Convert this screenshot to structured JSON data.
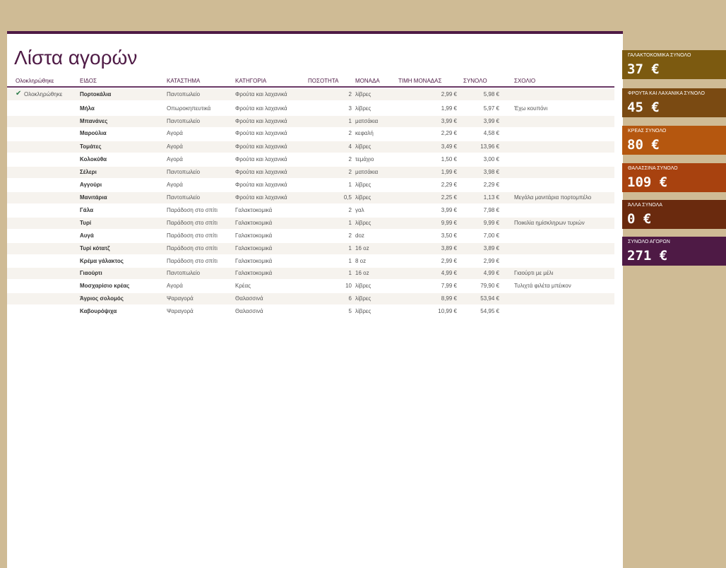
{
  "title": "Λίστα αγορών",
  "headers": [
    "Ολοκληρώθηκε",
    "ΕΙΔΟΣ",
    "ΚΑΤΑΣΤΗΜΑ",
    "ΚΑΤΗΓΟΡΙΑ",
    "ΠΟΣΟΤΗΤΑ",
    "ΜΟΝΑΔΑ",
    "ΤΙΜΗ ΜΟΝΑΔΑΣ",
    "ΣΥΝΟΛΟ",
    "ΣΧΟΛΙΟ"
  ],
  "rows": [
    {
      "done": "Ολοκληρώθηκε",
      "item": "Πορτοκάλια",
      "store": "Παντοπωλείο",
      "cat": "Φρούτα και λαχανικά",
      "qty": "2",
      "unit": "λίβρες",
      "price": "2,99 €",
      "total": "5,98 €",
      "note": ""
    },
    {
      "done": "",
      "item": "Μήλα",
      "store": "Οπωροκηπευτικά",
      "cat": "Φρούτα και λαχανικά",
      "qty": "3",
      "unit": "λίβρες",
      "price": "1,99 €",
      "total": "5,97 €",
      "note": "Έχω κουπόνι"
    },
    {
      "done": "",
      "item": "Μπανάνες",
      "store": "Παντοπωλείο",
      "cat": "Φρούτα και λαχανικά",
      "qty": "1",
      "unit": "ματσάκια",
      "price": "3,99 €",
      "total": "3,99 €",
      "note": ""
    },
    {
      "done": "",
      "item": "Μαρούλια",
      "store": "Αγορά",
      "cat": "Φρούτα και λαχανικά",
      "qty": "2",
      "unit": "κεφαλή",
      "price": "2,29 €",
      "total": "4,58 €",
      "note": ""
    },
    {
      "done": "",
      "item": "Τομάτες",
      "store": "Αγορά",
      "cat": "Φρούτα και λαχανικά",
      "qty": "4",
      "unit": "λίβρες",
      "price": "3,49 €",
      "total": "13,96 €",
      "note": ""
    },
    {
      "done": "",
      "item": "Κολοκύθα",
      "store": "Αγορά",
      "cat": "Φρούτα και λαχανικά",
      "qty": "2",
      "unit": "τεμάχιο",
      "price": "1,50 €",
      "total": "3,00 €",
      "note": ""
    },
    {
      "done": "",
      "item": "Σέλερι",
      "store": "Παντοπωλείο",
      "cat": "Φρούτα και λαχανικά",
      "qty": "2",
      "unit": "ματσάκια",
      "price": "1,99 €",
      "total": "3,98 €",
      "note": ""
    },
    {
      "done": "",
      "item": "Αγγούρι",
      "store": "Αγορά",
      "cat": "Φρούτα και λαχανικά",
      "qty": "1",
      "unit": "λίβρες",
      "price": "2,29 €",
      "total": "2,29 €",
      "note": ""
    },
    {
      "done": "",
      "item": "Μανιτάρια",
      "store": "Παντοπωλείο",
      "cat": "Φρούτα και λαχανικά",
      "qty": "0,5",
      "unit": "λίβρες",
      "price": "2,25 €",
      "total": "1,13 €",
      "note": "Μεγάλα μανιτάρια πορτομπέλο"
    },
    {
      "done": "",
      "item": "Γάλα",
      "store": "Παράδοση στο σπίτι",
      "cat": "Γαλακτοκομικά",
      "qty": "2",
      "unit": "γαλ",
      "price": "3,99 €",
      "total": "7,98 €",
      "note": ""
    },
    {
      "done": "",
      "item": "Τυρί",
      "store": "Παράδοση στο σπίτι",
      "cat": "Γαλακτοκομικά",
      "qty": "1",
      "unit": "λίβρες",
      "price": "9,99 €",
      "total": "9,99 €",
      "note": "Ποικιλία ημίσκληρων τυριών"
    },
    {
      "done": "",
      "item": "Αυγά",
      "store": "Παράδοση στο σπίτι",
      "cat": "Γαλακτοκομικά",
      "qty": "2",
      "unit": "doz",
      "price": "3,50 €",
      "total": "7,00 €",
      "note": ""
    },
    {
      "done": "",
      "item": "Τυρί κότατζ",
      "store": "Παράδοση στο σπίτι",
      "cat": "Γαλακτοκομικά",
      "qty": "1",
      "unit": "16 oz",
      "price": "3,89 €",
      "total": "3,89 €",
      "note": ""
    },
    {
      "done": "",
      "item": "Κρέμα γάλακτος",
      "store": "Παράδοση στο σπίτι",
      "cat": "Γαλακτοκομικά",
      "qty": "1",
      "unit": "8 oz",
      "price": "2,99 €",
      "total": "2,99 €",
      "note": ""
    },
    {
      "done": "",
      "item": "Γιαούρτι",
      "store": "Παντοπωλείο",
      "cat": "Γαλακτοκομικά",
      "qty": "1",
      "unit": "16 oz",
      "price": "4,99 €",
      "total": "4,99 €",
      "note": "Γιαούρτι με μέλι"
    },
    {
      "done": "",
      "item": "Μοσχαρίσιο κρέας",
      "store": "Αγορά",
      "cat": "Κρέας",
      "qty": "10",
      "unit": "λίβρες",
      "price": "7,99 €",
      "total": "79,90 €",
      "note": "Τυλιχτά φιλέτα μπέικον"
    },
    {
      "done": "",
      "item": "Άγριος σολομός",
      "store": "Ψαραγορά",
      "cat": "Θαλασσινά",
      "qty": "6",
      "unit": "λίβρες",
      "price": "8,99 €",
      "total": "53,94 €",
      "note": ""
    },
    {
      "done": "",
      "item": "Καβουρόψιχα",
      "store": "Ψαραγορά",
      "cat": "Θαλασσινά",
      "qty": "5",
      "unit": "λίβρες",
      "price": "10,99 €",
      "total": "54,95 €",
      "note": ""
    }
  ],
  "tiles": [
    {
      "label": "ΓΑΛΑΚΤΟΚΟΜΙΚΑ ΣΥΝΟΛΟ",
      "value": "37 €",
      "color": "#7c5a10"
    },
    {
      "label": "ΦΡΟΥΤΑ ΚΑΙ ΛΑΧΑΝΙΚΑ ΣΥΝΟΛΟ",
      "value": "45 €",
      "color": "#7a4a12"
    },
    {
      "label": "ΚΡΕΑΣ ΣΥΝΟΛΟ",
      "value": "80 €",
      "color": "#b5570f"
    },
    {
      "label": "ΘΑΛΑΣΣΙΝΑ ΣΥΝΟΛΟ",
      "value": "109 €",
      "color": "#a8420f"
    },
    {
      "label": "ΆΛΛΑ ΣΥΝΟΛΑ",
      "value": "0 €",
      "color": "#6a2a0e"
    },
    {
      "label": "ΣΥΝΟΛΟ ΑΓΟΡΩΝ",
      "value": "271 €",
      "color": "#4e1a45"
    }
  ],
  "check_icon": "check-icon"
}
